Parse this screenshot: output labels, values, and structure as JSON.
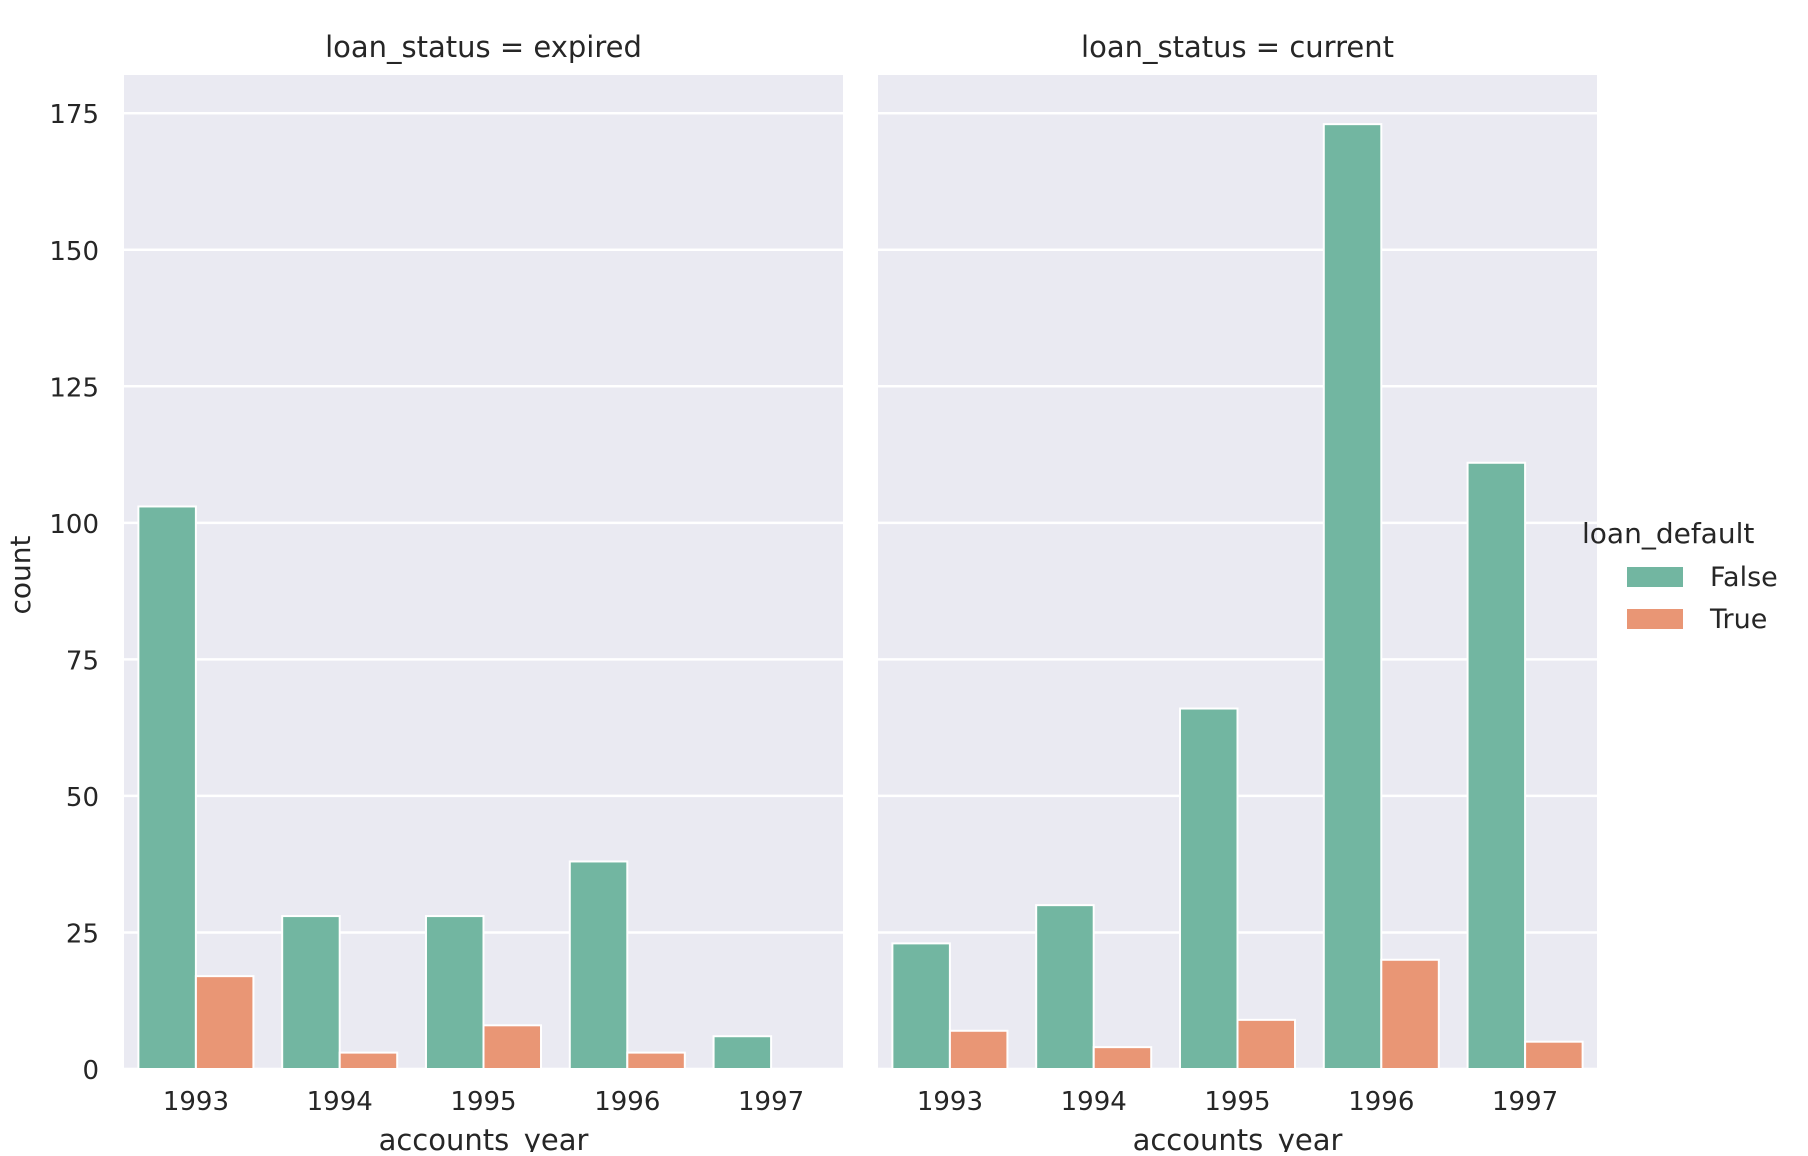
{
  "chart_data": {
    "type": "bar",
    "layout": "facet-grid",
    "ylabel": "count",
    "ylim": [
      0,
      182
    ],
    "yticks": [
      0,
      25,
      50,
      75,
      100,
      125,
      150,
      175
    ],
    "grid": true,
    "legend": {
      "title": "loan_default",
      "placement": "right",
      "entries": [
        {
          "name": "False",
          "color": "#72b6a1"
        },
        {
          "name": "True",
          "color": "#e99675"
        }
      ]
    },
    "facets": [
      {
        "title": "loan_status = expired",
        "xlabel": "accounts_year",
        "categories": [
          "1993",
          "1994",
          "1995",
          "1996",
          "1997"
        ],
        "series": [
          {
            "name": "False",
            "values": [
              103,
              28,
              28,
              38,
              6
            ]
          },
          {
            "name": "True",
            "values": [
              17,
              3,
              8,
              3,
              0
            ]
          }
        ]
      },
      {
        "title": "loan_status = current",
        "xlabel": "accounts_year",
        "categories": [
          "1993",
          "1994",
          "1995",
          "1996",
          "1997"
        ],
        "series": [
          {
            "name": "False",
            "values": [
              23,
              30,
              66,
              173,
              111
            ]
          },
          {
            "name": "True",
            "values": [
              7,
              4,
              9,
              20,
              5
            ]
          }
        ]
      }
    ]
  },
  "colors": {
    "panel_background": "#eaeaf2",
    "gridline": "#ffffff",
    "text": "#262626"
  }
}
